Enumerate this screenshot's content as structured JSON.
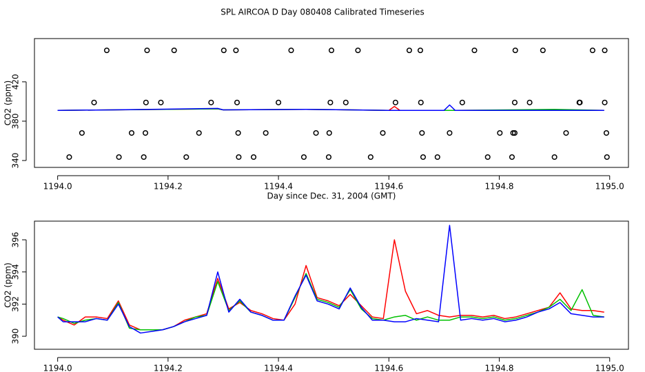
{
  "chart_data": [
    {
      "type": "line",
      "title": "SPL AIRCOA D  Day 080408  Calibrated Timeseries",
      "x_label": "Day since Dec. 31, 2004 (GMT)",
      "y_label": "CO2 (ppm)",
      "xlim": [
        1193.958,
        1195.034
      ],
      "ylim": [
        333,
        464
      ],
      "xticks": [
        {
          "value": 1194,
          "label": "1194.0"
        },
        {
          "value": 1194.2,
          "label": "1194.2"
        },
        {
          "value": 1194.4,
          "label": "1194.4"
        },
        {
          "value": 1194.6,
          "label": "1194.6"
        },
        {
          "value": 1194.8,
          "label": "1194.8"
        },
        {
          "value": 1195,
          "label": "1195.0"
        }
      ],
      "yticks": [
        340,
        380,
        420
      ],
      "x": [
        1194.0,
        1194.1,
        1194.29,
        1194.3,
        1194.45,
        1194.6,
        1194.61,
        1194.62,
        1194.7,
        1194.71,
        1194.72,
        1194.9,
        1194.99
      ],
      "series": [
        {
          "color": "#ff0000",
          "values": [
            391,
            391.5,
            392.5,
            391.5,
            392,
            391,
            395,
            391,
            391,
            391,
            391,
            391.5,
            391
          ]
        },
        {
          "color": "#00c000",
          "values": [
            391,
            391.5,
            392.5,
            391.5,
            392,
            391,
            391,
            391,
            391,
            391,
            391,
            392,
            391
          ]
        },
        {
          "color": "#0000ff",
          "values": [
            391,
            391.5,
            393,
            391.5,
            392,
            391,
            391,
            391,
            391,
            396.5,
            391,
            391,
            391
          ]
        },
        {
          "kind": "points",
          "color": "#000000",
          "x": [
            1194.089,
            1194.162,
            1194.211,
            1194.301,
            1194.323,
            1194.423,
            1194.496,
            1194.544,
            1194.637,
            1194.657,
            1194.755,
            1194.829,
            1194.879,
            1194.969,
            1194.991
          ],
          "values": [
            452,
            452,
            452,
            452,
            452,
            452,
            452,
            452,
            452,
            452,
            452,
            452,
            452,
            452,
            452
          ]
        },
        {
          "kind": "points",
          "color": "#000000",
          "x": [
            1194.066,
            1194.16,
            1194.187,
            1194.278,
            1194.325,
            1194.4,
            1194.494,
            1194.522,
            1194.612,
            1194.658,
            1194.733,
            1194.828,
            1194.855,
            1194.945,
            1194.946,
            1194.991
          ],
          "values": [
            399,
            399,
            399,
            399,
            399,
            399,
            399,
            399,
            399,
            399,
            399,
            399,
            399,
            399,
            399,
            399
          ]
        },
        {
          "kind": "points",
          "color": "#000000",
          "x": [
            1194.044,
            1194.134,
            1194.159,
            1194.256,
            1194.327,
            1194.377,
            1194.468,
            1194.492,
            1194.589,
            1194.66,
            1194.71,
            1194.801,
            1194.825,
            1194.828,
            1194.921,
            1194.994
          ],
          "values": [
            368,
            368,
            368,
            368,
            368,
            368,
            368,
            368,
            368,
            368,
            368,
            368,
            368,
            368,
            368,
            368
          ]
        },
        {
          "kind": "points",
          "color": "#000000",
          "x": [
            1194.021,
            1194.111,
            1194.156,
            1194.233,
            1194.328,
            1194.355,
            1194.446,
            1194.491,
            1194.567,
            1194.662,
            1194.688,
            1194.779,
            1194.823,
            1194.9,
            1194.995
          ],
          "values": [
            343.5,
            343.5,
            343.5,
            343.5,
            343.5,
            343.5,
            343.5,
            343.5,
            343.5,
            343.5,
            343.5,
            343.5,
            343.5,
            343.5,
            343.5
          ]
        }
      ]
    },
    {
      "type": "line",
      "x_label": "Day since Dec. 31, 2004 (GMT)",
      "y_label": "CO2 (ppm)",
      "xlim": [
        1193.958,
        1195.034
      ],
      "ylim": [
        389.19,
        397.16
      ],
      "xticks": [
        {
          "value": 1194,
          "label": "1194.0"
        },
        {
          "value": 1194.2,
          "label": "1194.2"
        },
        {
          "value": 1194.4,
          "label": "1194.4"
        },
        {
          "value": 1194.6,
          "label": "1194.6"
        },
        {
          "value": 1194.8,
          "label": "1194.8"
        },
        {
          "value": 1195,
          "label": "1195.0"
        }
      ],
      "yticks": [
        390,
        392,
        394,
        396
      ],
      "x": [
        1194.0,
        1194.01,
        1194.03,
        1194.05,
        1194.07,
        1194.09,
        1194.11,
        1194.13,
        1194.15,
        1194.17,
        1194.19,
        1194.21,
        1194.23,
        1194.25,
        1194.27,
        1194.29,
        1194.31,
        1194.33,
        1194.35,
        1194.37,
        1194.39,
        1194.41,
        1194.43,
        1194.45,
        1194.47,
        1194.49,
        1194.51,
        1194.53,
        1194.55,
        1194.57,
        1194.59,
        1194.61,
        1194.63,
        1194.65,
        1194.67,
        1194.69,
        1194.71,
        1194.73,
        1194.75,
        1194.77,
        1194.79,
        1194.81,
        1194.83,
        1194.85,
        1194.87,
        1194.89,
        1194.91,
        1194.93,
        1194.95,
        1194.97,
        1194.99
      ],
      "series": [
        {
          "color": "#ff0000",
          "values": [
            391.2,
            391.0,
            390.7,
            391.2,
            391.2,
            391.1,
            392.2,
            390.7,
            390.4,
            390.4,
            390.4,
            390.6,
            391.0,
            391.2,
            391.4,
            393.6,
            391.7,
            392.1,
            391.6,
            391.4,
            391.1,
            391.0,
            392.0,
            394.4,
            392.4,
            392.2,
            391.9,
            392.6,
            391.9,
            391.2,
            391.1,
            396.0,
            392.8,
            391.4,
            391.6,
            391.3,
            391.2,
            391.3,
            391.3,
            391.2,
            391.3,
            391.1,
            391.2,
            391.4,
            391.6,
            391.8,
            392.7,
            391.7,
            391.6,
            391.6,
            391.5
          ]
        },
        {
          "color": "#00c000",
          "values": [
            391.2,
            391.1,
            390.8,
            391.0,
            391.1,
            391.0,
            392.1,
            390.5,
            390.4,
            390.4,
            390.4,
            390.6,
            390.9,
            391.2,
            391.3,
            393.4,
            391.6,
            392.2,
            391.5,
            391.3,
            391.0,
            391.0,
            392.4,
            393.9,
            392.3,
            392.1,
            391.8,
            392.9,
            391.7,
            391.1,
            391.0,
            391.2,
            391.3,
            391.0,
            391.2,
            391.0,
            391.0,
            391.2,
            391.2,
            391.1,
            391.2,
            391.0,
            391.1,
            391.3,
            391.5,
            391.8,
            392.3,
            391.6,
            392.9,
            391.3,
            391.2
          ]
        },
        {
          "color": "#0000ff",
          "values": [
            391.2,
            390.9,
            390.9,
            390.9,
            391.1,
            391.0,
            392.0,
            390.6,
            390.2,
            390.3,
            390.4,
            390.6,
            390.9,
            391.1,
            391.3,
            394.0,
            391.5,
            392.3,
            391.5,
            391.3,
            391.0,
            391.0,
            392.5,
            393.8,
            392.2,
            392.0,
            391.7,
            393.0,
            391.8,
            391.0,
            391.0,
            390.9,
            390.9,
            391.1,
            391.0,
            390.9,
            396.9,
            391.0,
            391.1,
            391.0,
            391.1,
            390.9,
            391.0,
            391.2,
            391.5,
            391.7,
            392.1,
            391.4,
            391.3,
            391.2,
            391.2
          ]
        }
      ]
    }
  ]
}
